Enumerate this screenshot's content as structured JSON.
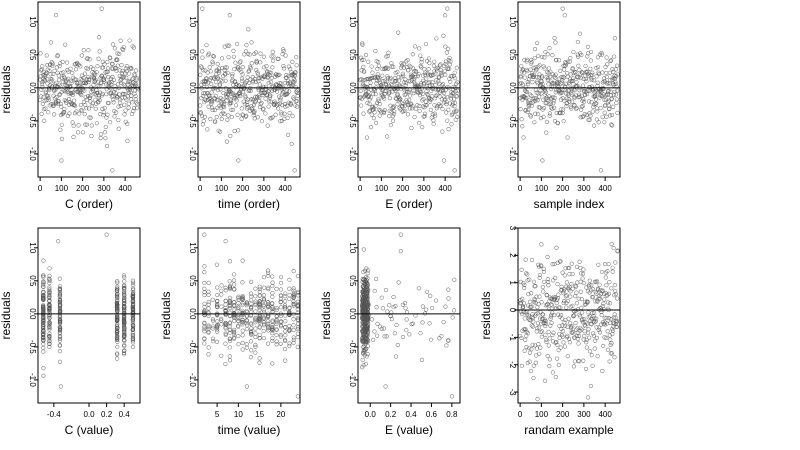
{
  "figure": {
    "point_color": "#555555",
    "zero_line_color": "#000000"
  },
  "chart_data": [
    {
      "type": "scatter",
      "xlabel": "C (order)",
      "ylabel": "residuals",
      "xlim": [
        -10,
        470
      ],
      "ylim": [
        -1.35,
        1.3
      ],
      "xticks": [
        0,
        100,
        200,
        300,
        400
      ],
      "xtick_labels": [
        "0",
        "100",
        "200",
        "300",
        "400"
      ],
      "yticks": [
        -1.0,
        -0.5,
        0.0,
        0.5,
        1.0
      ],
      "ytick_labels": [
        "-1.0",
        "-0.5",
        "0.0",
        "0.5",
        "1.0"
      ],
      "hline": 0,
      "pattern": "order",
      "n_points": 460,
      "spread": 0.28,
      "outliers": [
        [
          75,
          1.1
        ],
        [
          100,
          -1.1
        ],
        [
          340,
          -1.25
        ],
        [
          290,
          1.2
        ]
      ]
    },
    {
      "type": "scatter",
      "xlabel": "time (order)",
      "ylabel": "residuals",
      "xlim": [
        -10,
        470
      ],
      "ylim": [
        -1.35,
        1.3
      ],
      "xticks": [
        0,
        100,
        200,
        300,
        400
      ],
      "xtick_labels": [
        "0",
        "100",
        "200",
        "300",
        "400"
      ],
      "yticks": [
        -1.0,
        -0.5,
        0.0,
        0.5,
        1.0
      ],
      "ytick_labels": [
        "-1.0",
        "-0.5",
        "0.0",
        "0.5",
        "1.0"
      ],
      "hline": 0,
      "pattern": "order",
      "n_points": 460,
      "spread": 0.28,
      "outliers": [
        [
          10,
          1.2
        ],
        [
          140,
          1.1
        ],
        [
          180,
          -1.1
        ],
        [
          445,
          -1.25
        ]
      ]
    },
    {
      "type": "scatter",
      "xlabel": "E (order)",
      "ylabel": "residuals",
      "xlim": [
        -10,
        470
      ],
      "ylim": [
        -1.35,
        1.3
      ],
      "xticks": [
        0,
        100,
        200,
        300,
        400
      ],
      "xtick_labels": [
        "0",
        "100",
        "200",
        "300",
        "400"
      ],
      "yticks": [
        -1.0,
        -0.5,
        0.0,
        0.5,
        1.0
      ],
      "ytick_labels": [
        "-1.0",
        "-0.5",
        "0.0",
        "0.5",
        "1.0"
      ],
      "hline": 0,
      "pattern": "order",
      "n_points": 460,
      "spread": 0.28,
      "outliers": [
        [
          395,
          -1.1
        ],
        [
          410,
          1.2
        ],
        [
          445,
          -1.25
        ],
        [
          400,
          1.1
        ]
      ]
    },
    {
      "type": "scatter",
      "xlabel": "sample index",
      "ylabel": "residuals",
      "xlim": [
        -10,
        470
      ],
      "ylim": [
        -1.35,
        1.3
      ],
      "xticks": [
        0,
        100,
        200,
        300,
        400
      ],
      "xtick_labels": [
        "0",
        "100",
        "200",
        "300",
        "400"
      ],
      "yticks": [
        -1.0,
        -0.5,
        0.0,
        0.5,
        1.0
      ],
      "ytick_labels": [
        "-1.0",
        "-0.5",
        "0.0",
        "0.5",
        "1.0"
      ],
      "hline": 0,
      "pattern": "order",
      "n_points": 460,
      "spread": 0.28,
      "outliers": [
        [
          105,
          -1.1
        ],
        [
          200,
          1.2
        ],
        [
          380,
          -1.25
        ],
        [
          210,
          1.1
        ]
      ]
    },
    {
      "type": "scatter",
      "xlabel": "C (value)",
      "ylabel": "residuals",
      "xlim": [
        -0.58,
        0.58
      ],
      "ylim": [
        -1.35,
        1.3
      ],
      "xticks": [
        -0.4,
        0.0,
        0.2,
        0.4
      ],
      "xtick_labels": [
        "-0.4",
        "0.0",
        "0.2",
        "0.4"
      ],
      "yticks": [
        -1.0,
        -0.5,
        0.0,
        0.5,
        1.0
      ],
      "ytick_labels": [
        "-1.0",
        "-0.5",
        "0.0",
        "0.5",
        "1.0"
      ],
      "hline": 0,
      "pattern": "columns",
      "columns": [
        -0.52,
        -0.45,
        -0.33,
        0.32,
        0.4,
        0.5
      ],
      "n_points": 460,
      "spread": 0.28,
      "outliers": [
        [
          -0.35,
          1.1
        ],
        [
          -0.32,
          -1.1
        ],
        [
          0.2,
          1.2
        ],
        [
          0.34,
          -1.25
        ]
      ]
    },
    {
      "type": "scatter",
      "xlabel": "time (value)",
      "ylabel": "residuals",
      "xlim": [
        0.5,
        24.5
      ],
      "ylim": [
        -1.35,
        1.3
      ],
      "xticks": [
        5,
        10,
        15,
        20
      ],
      "xtick_labels": [
        "5",
        "10",
        "15",
        "20"
      ],
      "yticks": [
        -1.0,
        -0.5,
        0.0,
        0.5,
        1.0
      ],
      "ytick_labels": [
        "-1.0",
        "-0.5",
        "0.0",
        "0.5",
        "1.0"
      ],
      "hline": 0,
      "pattern": "columns",
      "columns": [
        2,
        3,
        4,
        5,
        6,
        7,
        8,
        9,
        10,
        11,
        12,
        13,
        14,
        15,
        16,
        17,
        18,
        19,
        20,
        21,
        22,
        23,
        24
      ],
      "n_points": 460,
      "spread": 0.28,
      "outliers": [
        [
          2,
          1.2
        ],
        [
          7,
          1.1
        ],
        [
          12,
          -1.1
        ],
        [
          24,
          -1.25
        ]
      ]
    },
    {
      "type": "scatter",
      "xlabel": "E (value)",
      "ylabel": "residuals",
      "xlim": [
        -0.12,
        0.88
      ],
      "ylim": [
        -1.35,
        1.3
      ],
      "xticks": [
        0.0,
        0.2,
        0.4,
        0.6,
        0.8
      ],
      "xtick_labels": [
        "0.0",
        "0.2",
        "0.4",
        "0.6",
        "0.8"
      ],
      "yticks": [
        -1.0,
        -0.5,
        0.0,
        0.5,
        1.0
      ],
      "ytick_labels": [
        "-1.0",
        "-0.5",
        "0.0",
        "0.5",
        "1.0"
      ],
      "hline": 0,
      "pattern": "skewed",
      "n_points": 460,
      "spread": 0.28,
      "outliers": [
        [
          0.3,
          1.2
        ],
        [
          0.8,
          -1.25
        ],
        [
          0.15,
          -1.1
        ],
        [
          0.3,
          0.95
        ]
      ]
    },
    {
      "type": "scatter",
      "xlabel": "randam example",
      "ylabel": "residuals",
      "xlim": [
        -10,
        470
      ],
      "ylim": [
        -3.4,
        3.0
      ],
      "xticks": [
        0,
        100,
        200,
        300,
        400
      ],
      "xtick_labels": [
        "0",
        "100",
        "200",
        "300",
        "400"
      ],
      "yticks": [
        -3,
        -2,
        -1,
        0,
        1,
        2,
        3
      ],
      "ytick_labels": [
        "-3",
        "-2",
        "-1",
        "0",
        "1",
        "2",
        "3"
      ],
      "hline": 0,
      "pattern": "order",
      "n_points": 460,
      "spread": 1.0,
      "outliers": [
        [
          320,
          -3.2
        ],
        [
          100,
          2.4
        ]
      ]
    }
  ]
}
